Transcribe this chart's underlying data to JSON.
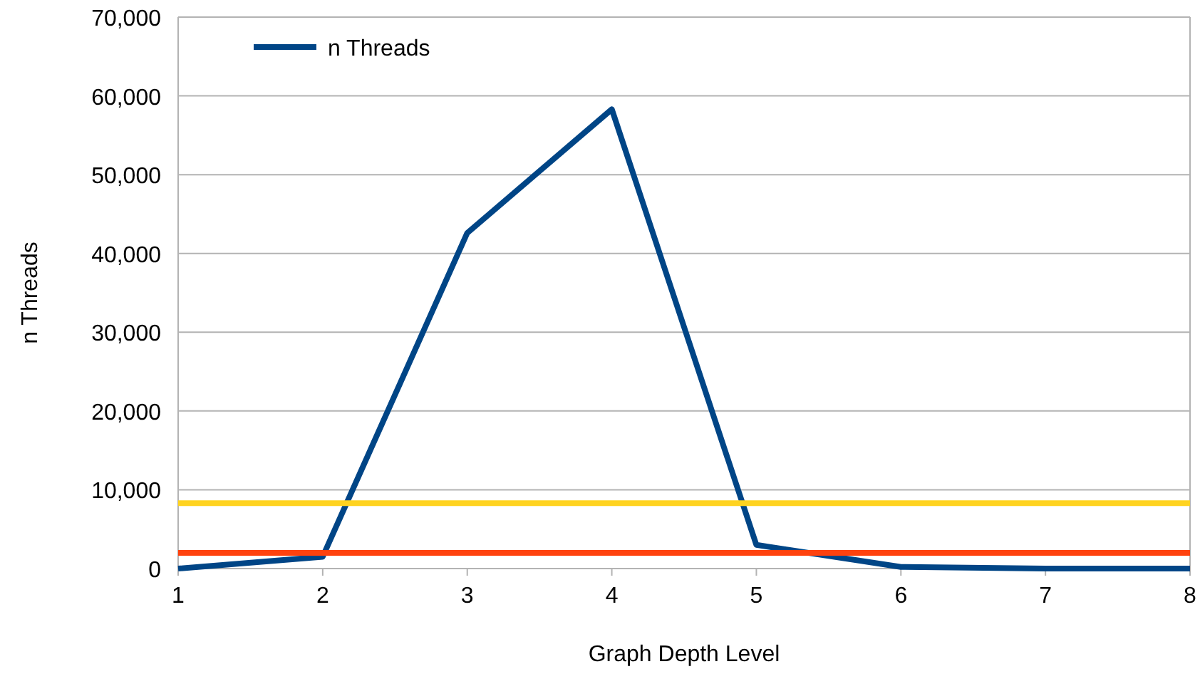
{
  "chart_data": {
    "type": "line",
    "xlabel": "Graph Depth Level",
    "ylabel": "n Threads",
    "x": [
      1,
      2,
      3,
      4,
      5,
      6,
      7,
      8
    ],
    "series": [
      {
        "name": "n Threads",
        "color": "#004586",
        "values": [
          0,
          1500,
          42600,
          58300,
          3000,
          200,
          0,
          0
        ]
      },
      {
        "color": "#ff420e",
        "values": [
          2000,
          2000,
          2000,
          2000,
          2000,
          2000,
          2000,
          2000
        ]
      },
      {
        "color": "#ffd320",
        "values": [
          8300,
          8300,
          8300,
          8300,
          8300,
          8300,
          8300,
          8300
        ]
      }
    ],
    "xlim": [
      1,
      8
    ],
    "xticks": [
      1,
      2,
      3,
      4,
      5,
      6,
      7,
      8
    ],
    "ylim": [
      0,
      70000
    ],
    "yticks": [
      {
        "value": 0,
        "label": "0"
      },
      {
        "value": 10000,
        "label": "10,000"
      },
      {
        "value": 20000,
        "label": "20,000"
      },
      {
        "value": 30000,
        "label": "30,000"
      },
      {
        "value": 40000,
        "label": "40,000"
      },
      {
        "value": 50000,
        "label": "50,000"
      },
      {
        "value": 60000,
        "label": "60,000"
      },
      {
        "value": 70000,
        "label": "70,000"
      }
    ],
    "grid": "y",
    "legend": "top",
    "marker": "none",
    "line_style": "solid"
  }
}
